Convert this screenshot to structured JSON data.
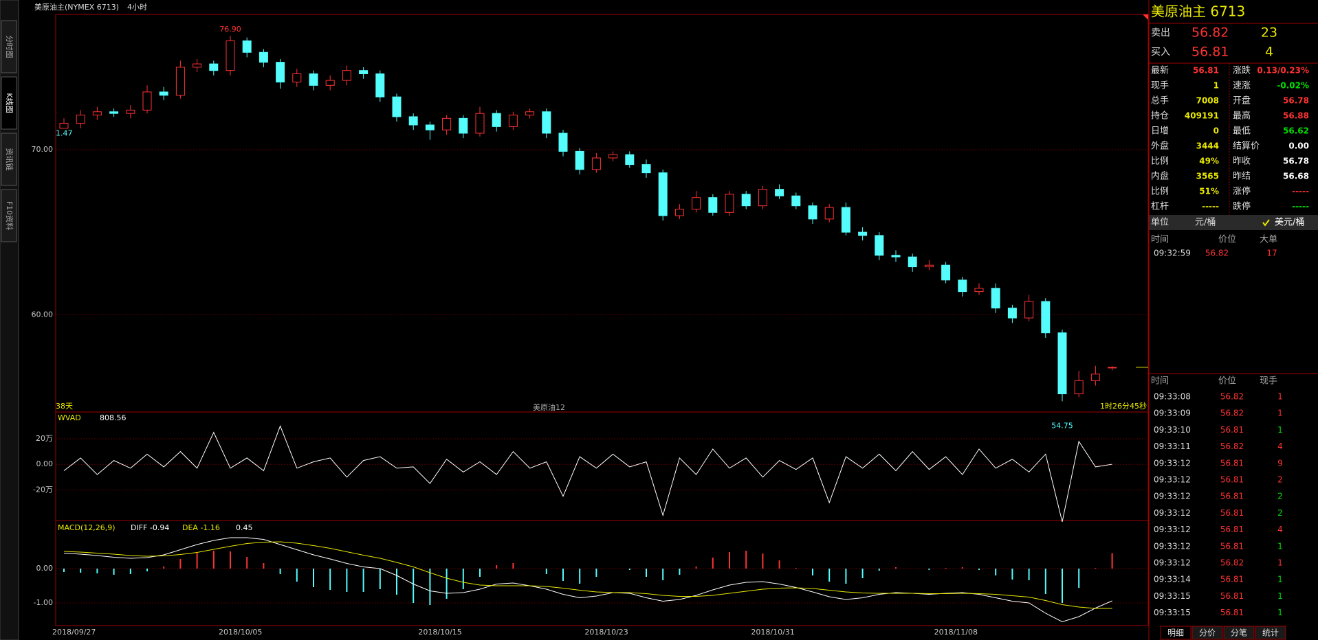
{
  "header": {
    "title": "美原油主(NYMEX 6713)",
    "period": "4小时"
  },
  "sidebar": {
    "tabs": [
      "分时图",
      "K线图",
      "资讯链",
      "F10资料"
    ]
  },
  "chart_data": [
    {
      "type": "candlestick",
      "up_color": "#ff3232",
      "down_color": "#54fcfc",
      "categories": [
        "2018/09/27",
        null,
        null,
        null,
        null,
        null,
        null,
        null,
        null,
        null,
        "2018/10/05",
        null,
        null,
        null,
        null,
        null,
        null,
        null,
        null,
        null,
        null,
        null,
        "2018/10/15",
        null,
        null,
        null,
        null,
        null,
        null,
        null,
        null,
        null,
        "2018/10/23",
        null,
        null,
        null,
        null,
        null,
        null,
        null,
        null,
        null,
        "2018/10/31",
        null,
        null,
        null,
        null,
        null,
        null,
        null,
        null,
        null,
        null,
        "2018/11/08",
        null,
        null,
        null,
        null,
        null,
        null,
        null,
        null,
        null,
        null
      ],
      "open": [
        71.3,
        71.6,
        72.1,
        72.3,
        72.2,
        72.4,
        73.5,
        73.3,
        75.0,
        75.2,
        74.8,
        76.6,
        75.9,
        75.3,
        74.1,
        74.6,
        73.9,
        74.2,
        74.8,
        74.6,
        73.2,
        72.0,
        71.5,
        71.2,
        71.9,
        71.0,
        72.2,
        71.4,
        72.1,
        72.3,
        71.0,
        69.9,
        68.8,
        69.5,
        69.7,
        69.1,
        68.6,
        66.0,
        66.4,
        67.1,
        66.2,
        67.3,
        66.6,
        67.6,
        67.2,
        66.6,
        65.8,
        66.5,
        65.0,
        64.8,
        63.6,
        63.5,
        62.9,
        63.0,
        62.1,
        61.4,
        61.6,
        60.4,
        59.8,
        60.8,
        58.9,
        55.2,
        56.0,
        56.78
      ],
      "high": [
        71.9,
        72.4,
        72.6,
        72.5,
        72.7,
        73.9,
        73.8,
        75.4,
        75.5,
        75.4,
        76.9,
        76.8,
        76.1,
        75.5,
        74.9,
        74.8,
        74.5,
        75.1,
        75.0,
        74.8,
        73.4,
        72.2,
        71.7,
        72.1,
        72.1,
        72.6,
        72.4,
        72.3,
        72.5,
        72.5,
        71.2,
        70.1,
        69.8,
        69.9,
        69.9,
        69.4,
        68.8,
        66.7,
        67.5,
        67.3,
        67.5,
        67.5,
        67.8,
        67.9,
        67.4,
        66.8,
        66.7,
        66.8,
        65.3,
        65.0,
        63.9,
        63.7,
        63.3,
        63.2,
        62.3,
        61.9,
        61.9,
        60.6,
        61.2,
        61.0,
        59.1,
        56.6,
        56.9,
        56.88
      ],
      "low": [
        71.47,
        71.3,
        71.8,
        72.0,
        71.9,
        72.2,
        73.0,
        73.1,
        74.7,
        74.5,
        74.5,
        75.6,
        75.0,
        73.7,
        73.8,
        73.6,
        73.6,
        73.9,
        74.3,
        72.9,
        71.7,
        71.2,
        70.6,
        70.9,
        70.7,
        70.8,
        71.1,
        71.2,
        71.9,
        70.7,
        69.6,
        68.5,
        68.6,
        69.3,
        68.9,
        68.3,
        65.7,
        65.8,
        66.2,
        66.0,
        66.0,
        66.4,
        66.4,
        67.0,
        66.4,
        65.5,
        65.6,
        64.8,
        64.5,
        63.3,
        63.2,
        62.6,
        62.7,
        61.9,
        61.1,
        61.2,
        60.1,
        59.5,
        59.6,
        58.6,
        54.75,
        55.0,
        55.7,
        56.62
      ],
      "close": [
        71.6,
        72.1,
        72.3,
        72.2,
        72.4,
        73.5,
        73.3,
        75.0,
        75.2,
        74.8,
        76.6,
        75.9,
        75.3,
        74.1,
        74.6,
        73.9,
        74.2,
        74.8,
        74.6,
        73.2,
        72.0,
        71.5,
        71.2,
        71.9,
        71.0,
        72.2,
        71.4,
        72.1,
        72.3,
        71.0,
        69.9,
        68.8,
        69.5,
        69.7,
        69.1,
        68.6,
        66.0,
        66.4,
        67.1,
        66.2,
        67.3,
        66.6,
        67.6,
        67.2,
        66.6,
        65.8,
        66.5,
        65.0,
        64.8,
        63.6,
        63.5,
        62.9,
        63.0,
        62.1,
        61.4,
        61.6,
        60.4,
        59.8,
        60.8,
        58.9,
        55.2,
        56.0,
        56.4,
        56.81
      ],
      "ylim": [
        54.1,
        78.2
      ],
      "yticks": [
        {
          "value": 60,
          "label": "60.00"
        },
        {
          "value": 70,
          "label": "70.00"
        }
      ],
      "max_label": "76.90",
      "min_label": "54.75",
      "first_low_label": "1.47",
      "last_price": 56.81,
      "annotations": {
        "left": "38天",
        "center": "美原油12",
        "right": "1时26分45秒"
      }
    },
    {
      "type": "line",
      "name": "WVAD",
      "value_label": "808.56",
      "color": "#ffffff",
      "values": [
        -5,
        5,
        -8,
        3,
        -3,
        8,
        -2,
        10,
        -3,
        25,
        -3,
        5,
        -5,
        30,
        -3,
        2,
        5,
        -10,
        3,
        6,
        -3,
        -2,
        -15,
        4,
        -6,
        2,
        -8,
        10,
        -3,
        2,
        -25,
        6,
        -3,
        8,
        -2,
        2,
        -40,
        5,
        -8,
        12,
        -3,
        5,
        -10,
        3,
        -4,
        5,
        -30,
        6,
        -3,
        8,
        -5,
        10,
        -4,
        6,
        -8,
        12,
        -3,
        4,
        -6,
        8,
        -45,
        18,
        -2,
        0.08
      ],
      "ylim": [
        -44,
        41
      ],
      "yticks": [
        {
          "value": 20,
          "label": "20万"
        },
        {
          "value": 0,
          "label": "0.00"
        },
        {
          "value": -20,
          "label": "-20万"
        }
      ]
    },
    {
      "type": "macd",
      "name": "MACD(12,26,9)",
      "diff_label": "DIFF -0.94",
      "dea_label": "DEA -1.16",
      "macd_label": "0.45",
      "series": [
        {
          "name": "DIFF",
          "color": "#ffffff",
          "values": [
            0.45,
            0.42,
            0.38,
            0.33,
            0.3,
            0.32,
            0.4,
            0.55,
            0.7,
            0.82,
            0.9,
            0.9,
            0.85,
            0.7,
            0.55,
            0.4,
            0.28,
            0.15,
            0.05,
            0.0,
            -0.2,
            -0.45,
            -0.65,
            -0.72,
            -0.7,
            -0.6,
            -0.45,
            -0.42,
            -0.5,
            -0.6,
            -0.75,
            -0.85,
            -0.8,
            -0.7,
            -0.72,
            -0.85,
            -0.95,
            -0.9,
            -0.78,
            -0.62,
            -0.48,
            -0.4,
            -0.38,
            -0.45,
            -0.55,
            -0.68,
            -0.82,
            -0.9,
            -0.85,
            -0.75,
            -0.7,
            -0.72,
            -0.75,
            -0.72,
            -0.7,
            -0.75,
            -0.85,
            -0.95,
            -1.0,
            -1.3,
            -1.55,
            -1.4,
            -1.15,
            -0.94
          ]
        },
        {
          "name": "DEA",
          "color": "#e8e800",
          "values": [
            0.5,
            0.48,
            0.45,
            0.42,
            0.38,
            0.36,
            0.37,
            0.41,
            0.47,
            0.56,
            0.65,
            0.73,
            0.77,
            0.78,
            0.74,
            0.67,
            0.59,
            0.49,
            0.39,
            0.3,
            0.18,
            0.05,
            -0.12,
            -0.28,
            -0.4,
            -0.48,
            -0.5,
            -0.5,
            -0.5,
            -0.52,
            -0.57,
            -0.63,
            -0.68,
            -0.7,
            -0.7,
            -0.73,
            -0.78,
            -0.81,
            -0.81,
            -0.78,
            -0.72,
            -0.66,
            -0.6,
            -0.57,
            -0.56,
            -0.58,
            -0.63,
            -0.68,
            -0.71,
            -0.72,
            -0.72,
            -0.72,
            -0.73,
            -0.73,
            -0.72,
            -0.73,
            -0.75,
            -0.79,
            -0.83,
            -0.93,
            -1.05,
            -1.12,
            -1.16,
            -1.16
          ]
        }
      ],
      "histogram": [
        -0.1,
        -0.12,
        -0.14,
        -0.18,
        -0.16,
        -0.08,
        0.06,
        0.28,
        0.46,
        0.52,
        0.5,
        0.34,
        0.16,
        -0.16,
        -0.38,
        -0.54,
        -0.62,
        -0.68,
        -0.68,
        -0.6,
        -0.76,
        -1.0,
        -1.06,
        -0.88,
        -0.6,
        -0.24,
        0.1,
        0.16,
        0.0,
        -0.16,
        -0.36,
        -0.44,
        -0.24,
        0.0,
        -0.04,
        -0.24,
        -0.34,
        -0.18,
        0.06,
        0.32,
        0.48,
        0.52,
        0.44,
        0.24,
        0.02,
        -0.2,
        -0.38,
        -0.44,
        -0.28,
        -0.06,
        0.04,
        0.0,
        -0.04,
        0.02,
        0.04,
        -0.04,
        -0.2,
        -0.32,
        -0.34,
        -0.74,
        -1.0,
        -0.56,
        0.02,
        0.45
      ],
      "ylim": [
        -1.66,
        1.4
      ],
      "yticks": [
        {
          "value": 0,
          "label": "0.00"
        },
        {
          "value": -1,
          "label": "-1.00"
        }
      ]
    }
  ],
  "quote": {
    "title": "美原油主  6713",
    "ask": {
      "label": "卖出",
      "price": "56.82",
      "volume": "23"
    },
    "bid": {
      "label": "买入",
      "price": "56.81",
      "volume": "4"
    },
    "left": [
      {
        "label": "最新",
        "value": "56.81",
        "color": "#ff3232"
      },
      {
        "label": "现手",
        "value": "1",
        "color": "#e8e800"
      },
      {
        "label": "总手",
        "value": "7008",
        "color": "#e8e800"
      },
      {
        "label": "持仓",
        "value": "409191",
        "color": "#e8e800"
      },
      {
        "label": "日增",
        "value": "0",
        "color": "#e8e800"
      },
      {
        "label": "外盘",
        "value": "3444",
        "color": "#e8e800"
      },
      {
        "label": "比例",
        "value": "49%",
        "color": "#e8e800"
      },
      {
        "label": "内盘",
        "value": "3565",
        "color": "#e8e800"
      },
      {
        "label": "比例",
        "value": "51%",
        "color": "#e8e800"
      },
      {
        "label": "杠杆",
        "value": "-----",
        "color": "#e8e800"
      }
    ],
    "right": [
      {
        "label": "涨跌",
        "value": "0.13/0.23%",
        "color": "#ff3232"
      },
      {
        "label": "速涨",
        "value": "-0.02%",
        "color": "#00e000"
      },
      {
        "label": "开盘",
        "value": "56.78",
        "color": "#ff3232"
      },
      {
        "label": "最高",
        "value": "56.88",
        "color": "#ff3232"
      },
      {
        "label": "最低",
        "value": "56.62",
        "color": "#00e000"
      },
      {
        "label": "结算价",
        "value": "0.00",
        "color": "#ffffff"
      },
      {
        "label": "昨收",
        "value": "56.78",
        "color": "#ffffff"
      },
      {
        "label": "昨结",
        "value": "56.68",
        "color": "#ffffff"
      },
      {
        "label": "涨停",
        "value": "-----",
        "color": "#ff3232"
      },
      {
        "label": "跌停",
        "value": "-----",
        "color": "#00e000"
      }
    ],
    "unit_label": "单位",
    "unit": "元/桶",
    "unit_alt": "美元/桶"
  },
  "big_trades": {
    "headers": [
      "时间",
      "价位",
      "大单"
    ],
    "rows": [
      [
        "09:32:59",
        "56.82",
        "17"
      ]
    ]
  },
  "ticks": {
    "headers": [
      "时间",
      "价位",
      "现手"
    ],
    "rows": [
      [
        "09:33:08",
        "56.82",
        "1"
      ],
      [
        "09:33:09",
        "56.82",
        "1"
      ],
      [
        "09:33:10",
        "56.81",
        "1"
      ],
      [
        "09:33:11",
        "56.82",
        "4"
      ],
      [
        "09:33:12",
        "56.81",
        "9"
      ],
      [
        "09:33:12",
        "56.81",
        "2"
      ],
      [
        "09:33:12",
        "56.81",
        "2"
      ],
      [
        "09:33:12",
        "56.81",
        "2"
      ],
      [
        "09:33:12",
        "56.81",
        "4"
      ],
      [
        "09:33:12",
        "56.81",
        "1"
      ],
      [
        "09:33:12",
        "56.82",
        "1"
      ],
      [
        "09:33:14",
        "56.81",
        "1"
      ],
      [
        "09:33:15",
        "56.81",
        "1"
      ],
      [
        "09:33:15",
        "56.81",
        "1"
      ]
    ],
    "colors": [
      "#ff3232",
      "#ff3232",
      "#00e000",
      "#ff3232",
      "#ff3232",
      "#ff3232",
      "#00e000",
      "#00e000",
      "#ff3232",
      "#00e000",
      "#ff3232",
      "#00e000",
      "#00e000",
      "#00e000"
    ]
  },
  "tabs": [
    "明细",
    "分价",
    "分笔",
    "统计"
  ]
}
